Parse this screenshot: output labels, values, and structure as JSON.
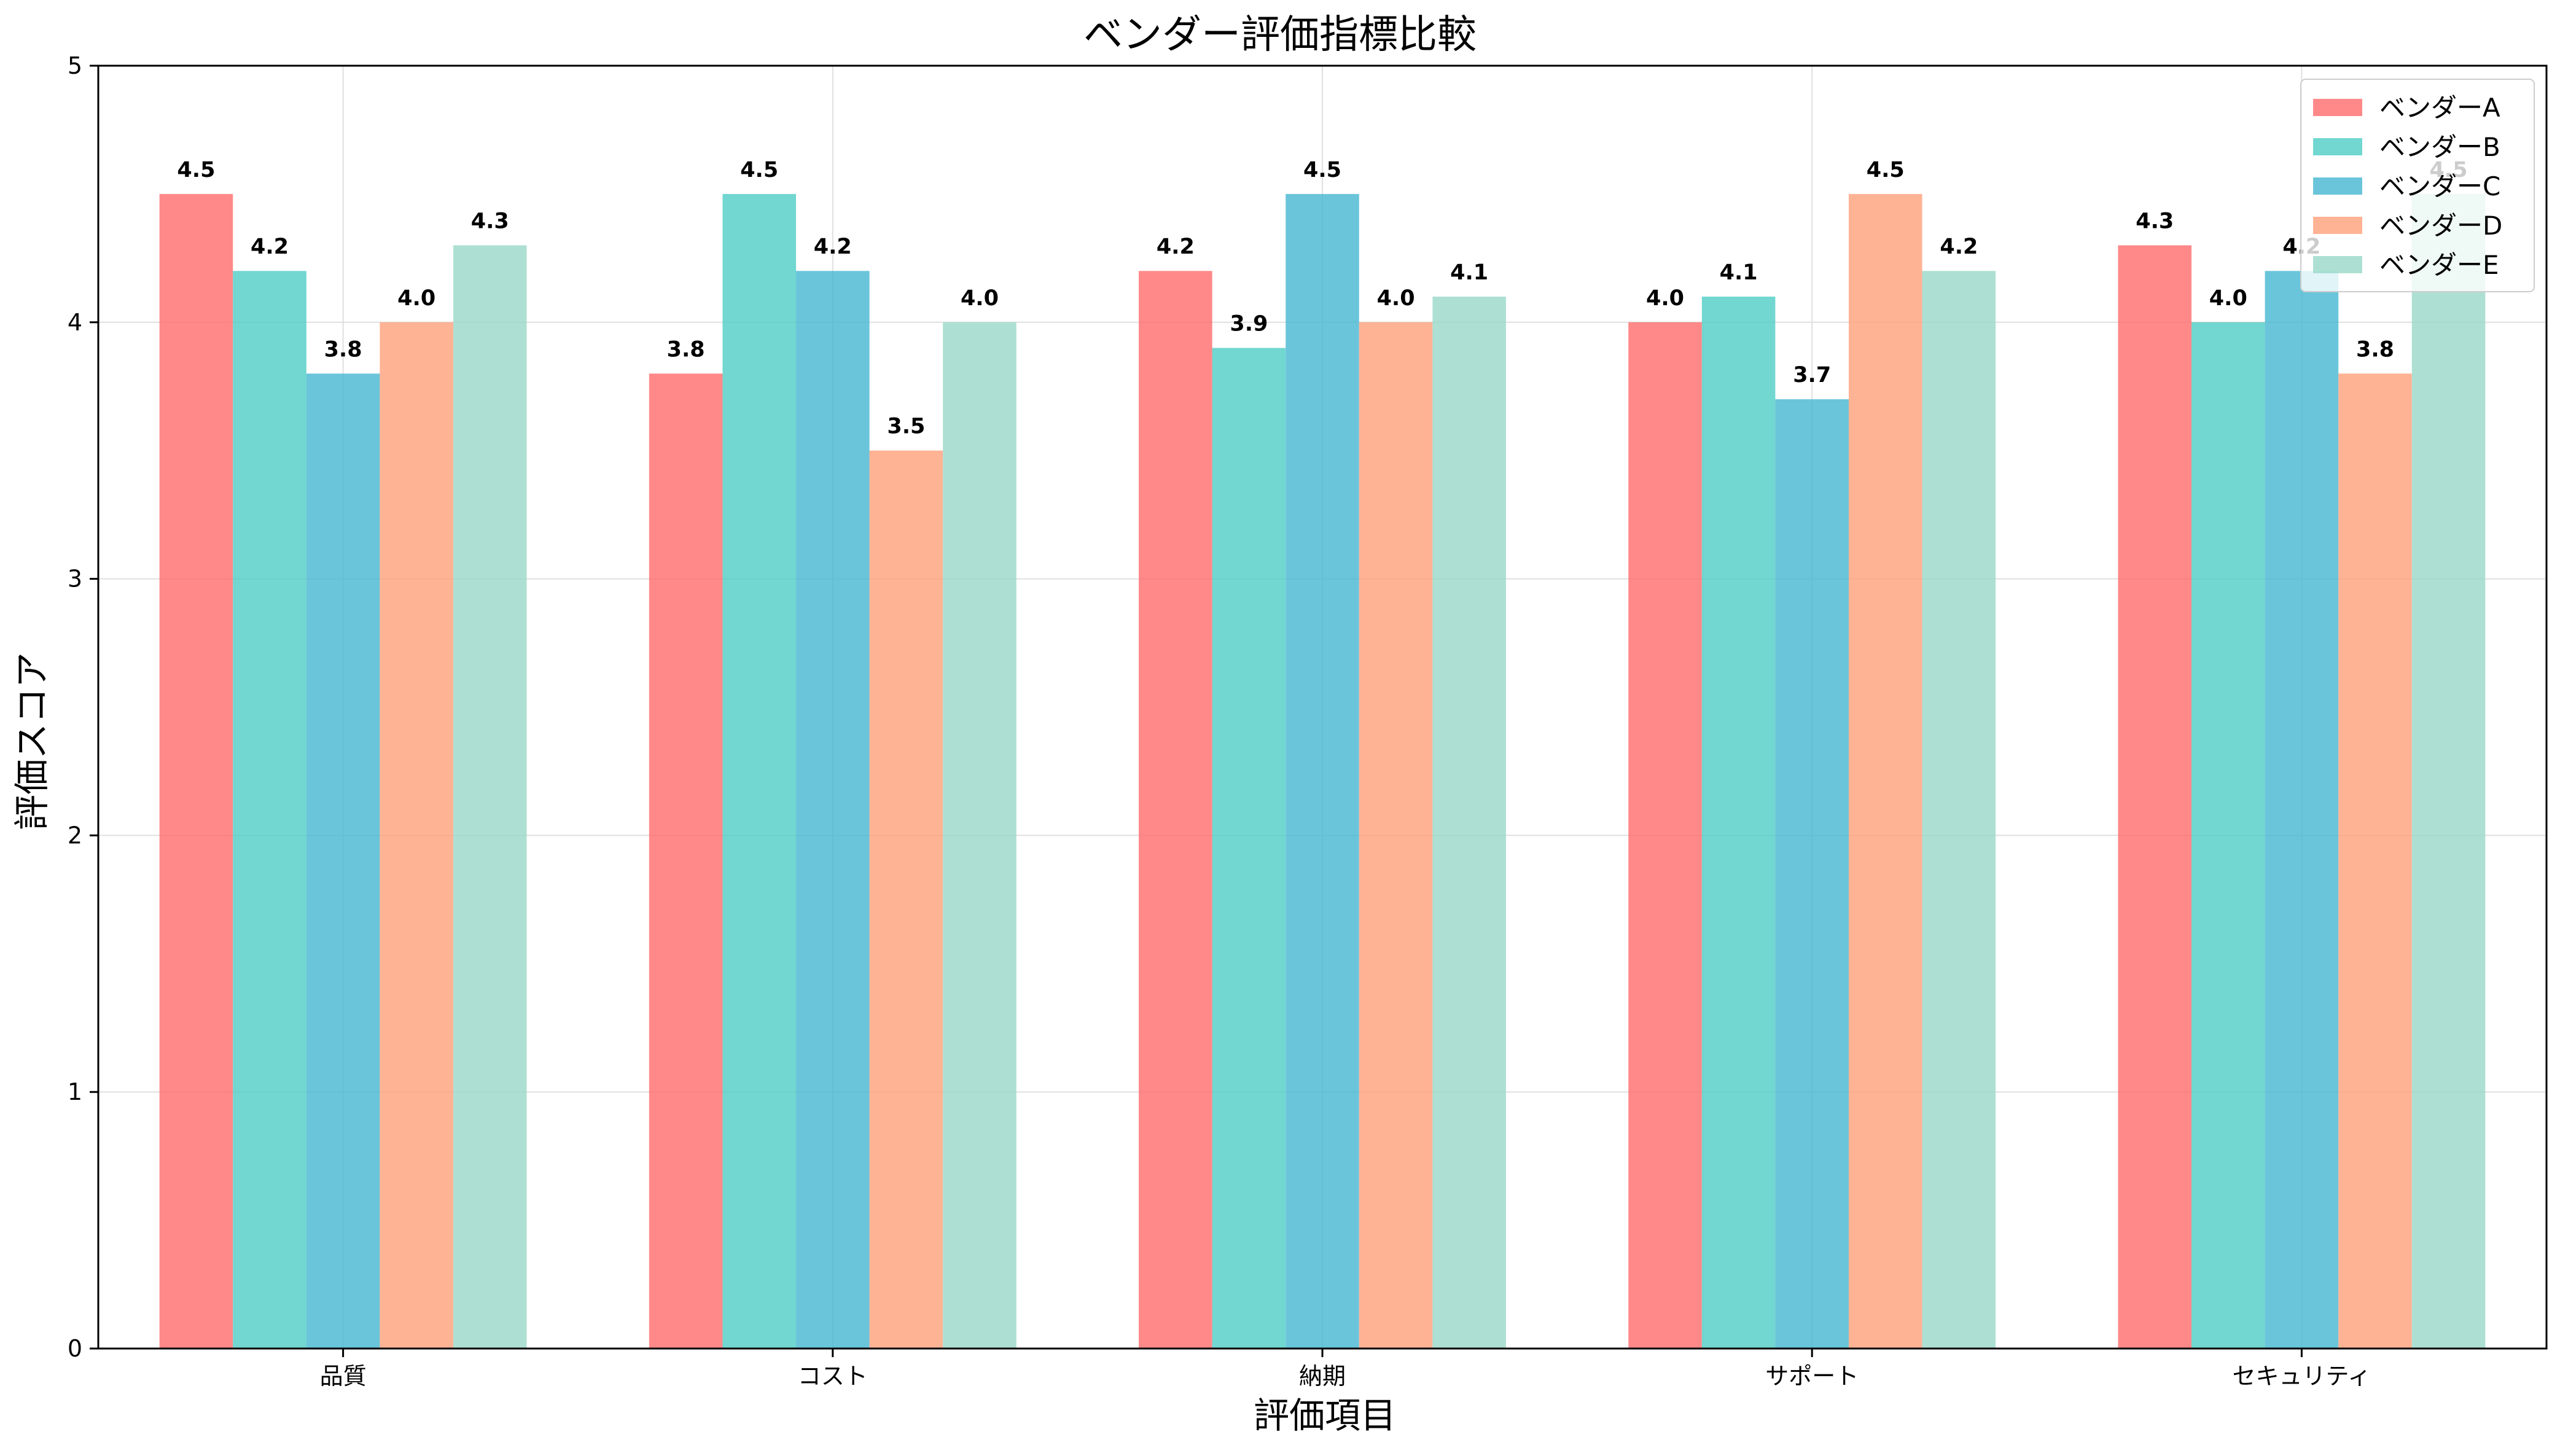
{
  "chart_data": {
    "type": "bar",
    "title": "ベンダー評価指標比較",
    "xlabel": "評価項目",
    "ylabel": "評価スコア",
    "categories": [
      "品質",
      "コスト",
      "納期",
      "サポート",
      "セキュリティ"
    ],
    "ylim": [
      0,
      5
    ],
    "yticks": [
      "0",
      "1",
      "2",
      "3",
      "4",
      "5"
    ],
    "grid": true,
    "legend_position": "top-right",
    "series": [
      {
        "name": "ベンダーA",
        "color": "#FF6B6B",
        "values": [
          4.5,
          3.8,
          4.2,
          4.0,
          4.3
        ],
        "labels": [
          "4.5",
          "3.8",
          "4.2",
          "4.0",
          "4.3"
        ]
      },
      {
        "name": "ベンダーB",
        "color": "#4ECDC4",
        "values": [
          4.2,
          4.5,
          3.9,
          4.1,
          4.0
        ],
        "labels": [
          "4.2",
          "4.5",
          "3.9",
          "4.1",
          "4.0"
        ]
      },
      {
        "name": "ベンダーC",
        "color": "#45B7D1",
        "values": [
          3.8,
          4.2,
          4.5,
          3.7,
          4.2
        ],
        "labels": [
          "3.8",
          "4.2",
          "4.5",
          "3.7",
          "4.2"
        ]
      },
      {
        "name": "ベンダーD",
        "color": "#FFA07A",
        "values": [
          4.0,
          3.5,
          4.0,
          4.5,
          3.8
        ],
        "labels": [
          "4.0",
          "3.5",
          "4.0",
          "4.5",
          "3.8"
        ]
      },
      {
        "name": "ベンダーE",
        "color": "#98D8C8",
        "values": [
          4.3,
          4.0,
          4.1,
          4.2,
          4.5
        ],
        "labels": [
          "4.3",
          "4.0",
          "4.1",
          "4.2",
          "4.5"
        ]
      }
    ]
  }
}
